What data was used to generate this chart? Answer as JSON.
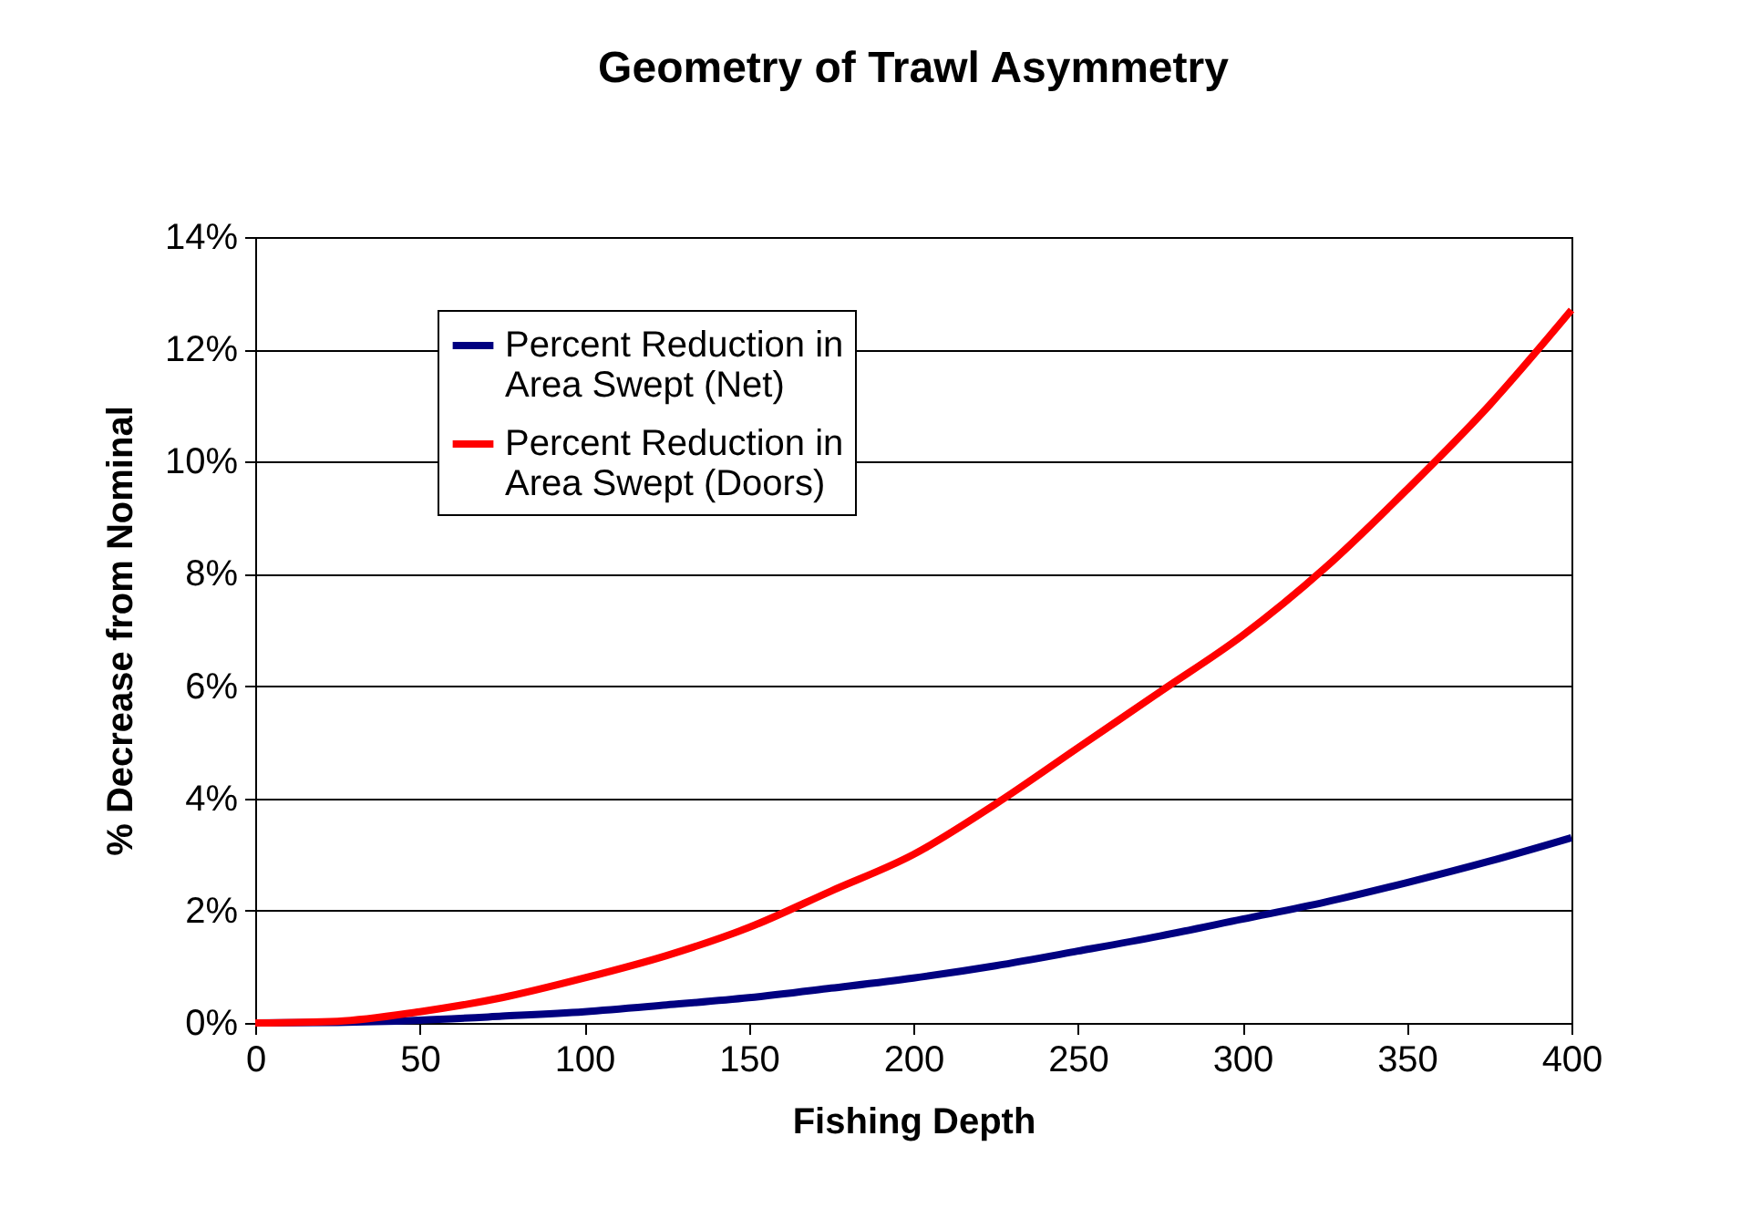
{
  "chart_data": {
    "type": "line",
    "title": "Geometry of Trawl Asymmetry",
    "xlabel": "Fishing Depth",
    "ylabel": "% Decrease from Nominal",
    "x": [
      0,
      25,
      50,
      75,
      100,
      125,
      150,
      175,
      200,
      225,
      250,
      275,
      300,
      325,
      350,
      375,
      400
    ],
    "series": [
      {
        "name": "Percent Reduction in Area Swept (Net)",
        "color": "#000080",
        "values": [
          0,
          0.01,
          0.05,
          0.12,
          0.2,
          0.32,
          0.45,
          0.62,
          0.8,
          1.02,
          1.28,
          1.55,
          1.85,
          2.15,
          2.5,
          2.88,
          3.3
        ]
      },
      {
        "name": "Percent Reduction in Area Swept (Doors)",
        "color": "#ff0000",
        "values": [
          0,
          0.03,
          0.2,
          0.45,
          0.8,
          1.2,
          1.7,
          2.35,
          3.0,
          3.9,
          4.9,
          5.9,
          6.9,
          8.1,
          9.5,
          11.0,
          12.7
        ]
      }
    ],
    "xlim": [
      0,
      400
    ],
    "xticks": [
      0,
      50,
      100,
      150,
      200,
      250,
      300,
      350,
      400
    ],
    "ylim": [
      0,
      14
    ],
    "yticks": [
      {
        "value": 0,
        "label": "0%"
      },
      {
        "value": 2,
        "label": "2%"
      },
      {
        "value": 4,
        "label": "4%"
      },
      {
        "value": 6,
        "label": "6%"
      },
      {
        "value": 8,
        "label": "8%"
      },
      {
        "value": 10,
        "label": "10%"
      },
      {
        "value": 12,
        "label": "12%"
      },
      {
        "value": 14,
        "label": "14%"
      }
    ],
    "grid": "y",
    "legend": "top left",
    "marker": "none",
    "line_style": "solid"
  }
}
